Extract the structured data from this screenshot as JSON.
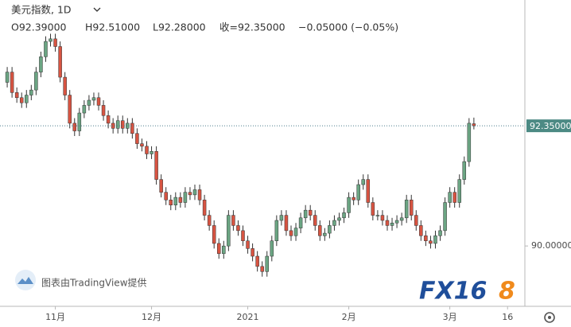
{
  "header": {
    "symbol": "美元指数, 1D",
    "open": "O92.39000",
    "high": "H92.51000",
    "low": "L92.28000",
    "close": "收=92.35000",
    "change": "−0.05000 (−0.05%)"
  },
  "watermark": "图表由TradingView提供",
  "logo": {
    "main": "FX16",
    "accent": "8"
  },
  "chart_data": {
    "type": "candlestick",
    "up_color": "#6ba583",
    "down_color": "#d75442",
    "xlim": [
      -1.5,
      107.6
    ],
    "ylim": [
      88.82,
      94.81
    ],
    "xticks": [
      {
        "value": 10,
        "label": "11月"
      },
      {
        "value": 30,
        "label": "12月"
      },
      {
        "value": 50,
        "label": "2021"
      },
      {
        "value": 71,
        "label": "2月"
      },
      {
        "value": 92,
        "label": "3月"
      },
      {
        "value": 104,
        "label": "16"
      }
    ],
    "yticks": [
      {
        "value": 90,
        "label": "90.00000"
      }
    ],
    "last_price": {
      "value": 92.35,
      "label": "92.35000"
    },
    "open": [
      93.2,
      93.4,
      93.0,
      92.9,
      92.8,
      92.95,
      93.05,
      93.4,
      93.7,
      94.0,
      94.05,
      93.9,
      93.3,
      92.95,
      92.4,
      92.25,
      92.6,
      92.75,
      92.85,
      92.9,
      92.75,
      92.55,
      92.4,
      92.3,
      92.45,
      92.3,
      92.4,
      92.2,
      92.0,
      91.95,
      91.8,
      91.85,
      91.3,
      91.05,
      90.9,
      90.8,
      90.95,
      90.85,
      91.05,
      91.0,
      91.1,
      90.9,
      90.6,
      90.4,
      90.05,
      89.85,
      90.0,
      90.6,
      90.4,
      90.3,
      90.1,
      89.95,
      89.8,
      89.6,
      89.5,
      89.8,
      90.1,
      90.5,
      90.6,
      90.3,
      90.2,
      90.35,
      90.55,
      90.7,
      90.6,
      90.4,
      90.2,
      90.25,
      90.4,
      90.5,
      90.55,
      90.65,
      90.95,
      90.9,
      91.2,
      91.3,
      90.85,
      90.6,
      90.6,
      90.5,
      90.4,
      90.45,
      90.5,
      90.55,
      90.9,
      90.6,
      90.4,
      90.2,
      90.1,
      90.05,
      90.2,
      90.3,
      90.85,
      91.05,
      90.85,
      91.3,
      91.65,
      92.39
    ],
    "high": [
      93.5,
      93.5,
      93.1,
      93.0,
      93.05,
      93.15,
      93.5,
      93.8,
      94.1,
      94.15,
      94.15,
      94.0,
      93.4,
      93.05,
      92.5,
      92.7,
      92.85,
      92.95,
      93.0,
      93.0,
      92.85,
      92.65,
      92.5,
      92.55,
      92.55,
      92.5,
      92.5,
      92.3,
      92.1,
      92.05,
      91.95,
      91.95,
      91.4,
      91.15,
      91.0,
      91.05,
      91.05,
      91.15,
      91.15,
      91.2,
      91.2,
      91.0,
      90.7,
      90.5,
      90.15,
      90.1,
      90.7,
      90.7,
      90.5,
      90.4,
      90.2,
      90.05,
      89.9,
      89.7,
      89.9,
      90.2,
      90.6,
      90.7,
      90.7,
      90.4,
      90.45,
      90.65,
      90.8,
      90.8,
      90.7,
      90.5,
      90.35,
      90.5,
      90.6,
      90.65,
      90.75,
      91.05,
      91.05,
      91.3,
      91.4,
      91.4,
      90.95,
      90.7,
      90.7,
      90.6,
      90.55,
      90.6,
      90.65,
      91.0,
      91.0,
      90.7,
      90.5,
      90.3,
      90.2,
      90.3,
      90.4,
      90.95,
      91.15,
      91.15,
      91.4,
      91.75,
      92.5,
      92.51
    ],
    "low": [
      93.1,
      92.9,
      92.8,
      92.7,
      92.7,
      92.85,
      92.95,
      93.3,
      93.6,
      93.9,
      93.8,
      93.2,
      92.85,
      92.3,
      92.15,
      92.15,
      92.5,
      92.65,
      92.75,
      92.65,
      92.45,
      92.3,
      92.2,
      92.2,
      92.2,
      92.2,
      92.1,
      91.9,
      91.85,
      91.7,
      91.7,
      91.2,
      90.95,
      90.8,
      90.7,
      90.7,
      90.75,
      90.75,
      90.9,
      90.9,
      90.8,
      90.5,
      90.3,
      89.95,
      89.75,
      89.75,
      89.9,
      90.3,
      90.2,
      90.0,
      89.85,
      89.7,
      89.5,
      89.4,
      89.4,
      89.7,
      90.0,
      90.4,
      90.2,
      90.1,
      90.1,
      90.25,
      90.45,
      90.5,
      90.3,
      90.1,
      90.1,
      90.15,
      90.3,
      90.4,
      90.45,
      90.55,
      90.8,
      90.8,
      91.1,
      90.75,
      90.5,
      90.5,
      90.4,
      90.3,
      90.3,
      90.35,
      90.4,
      90.45,
      90.5,
      90.3,
      90.1,
      90.0,
      89.95,
      89.95,
      90.1,
      90.2,
      90.75,
      90.75,
      90.75,
      91.2,
      91.55,
      92.28
    ],
    "close": [
      93.4,
      93.0,
      92.9,
      92.8,
      92.95,
      93.05,
      93.4,
      93.7,
      94.0,
      94.05,
      93.9,
      93.3,
      92.95,
      92.4,
      92.25,
      92.6,
      92.75,
      92.85,
      92.9,
      92.75,
      92.55,
      92.4,
      92.3,
      92.45,
      92.3,
      92.4,
      92.2,
      92.0,
      91.95,
      91.8,
      91.85,
      91.3,
      91.05,
      90.9,
      90.8,
      90.95,
      90.85,
      91.05,
      91.0,
      91.1,
      90.9,
      90.6,
      90.4,
      90.05,
      89.85,
      90.0,
      90.6,
      90.4,
      90.3,
      90.1,
      89.95,
      89.8,
      89.6,
      89.5,
      89.8,
      90.1,
      90.5,
      90.6,
      90.3,
      90.2,
      90.35,
      90.55,
      90.7,
      90.6,
      90.4,
      90.2,
      90.25,
      90.4,
      90.5,
      90.55,
      90.65,
      90.95,
      90.9,
      91.2,
      91.3,
      90.85,
      90.6,
      90.6,
      90.5,
      90.4,
      90.45,
      90.5,
      90.55,
      90.9,
      90.6,
      90.4,
      90.2,
      90.1,
      90.05,
      90.2,
      90.3,
      90.85,
      91.05,
      90.85,
      91.3,
      91.65,
      92.4,
      92.35
    ]
  }
}
